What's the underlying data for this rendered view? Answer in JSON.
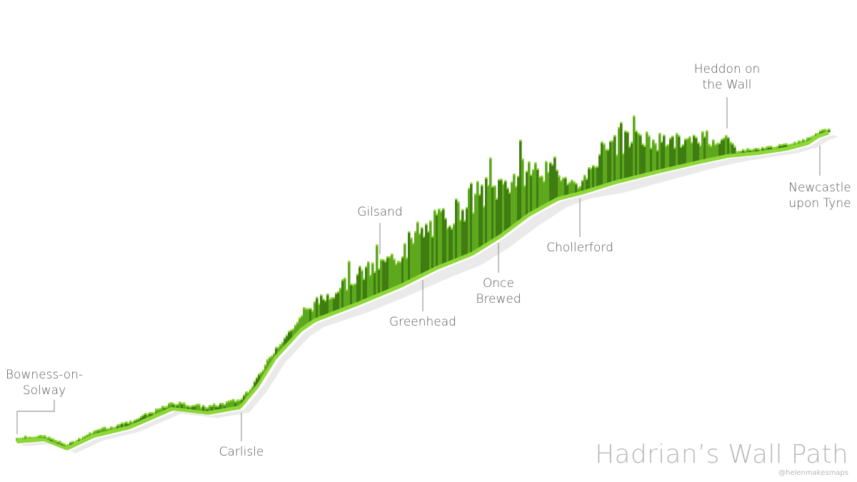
{
  "map": {
    "title": "Hadrian’s Wall Path",
    "credit": "@helenmakesmaps",
    "colors": {
      "background": "#ffffff",
      "path_top": "#8fd63a",
      "path_side": "#5ea81e",
      "path_dark": "#3f7d12",
      "shadow": "#d9d9d9",
      "label": "#555555",
      "leader": "#9a9a9a",
      "title": "#b8b8b8"
    },
    "places": [
      {
        "id": "bowness",
        "lines": [
          "Bowness-on-",
          "Solway"
        ]
      },
      {
        "id": "carlisle",
        "lines": [
          "Carlisle"
        ]
      },
      {
        "id": "greenhead",
        "lines": [
          "Greenhead"
        ]
      },
      {
        "id": "gilsand",
        "lines": [
          "Gilsand"
        ]
      },
      {
        "id": "once-brewed",
        "lines": [
          "Once",
          "Brewed"
        ]
      },
      {
        "id": "chollerford",
        "lines": [
          "Chollerford"
        ]
      },
      {
        "id": "heddon",
        "lines": [
          "Heddon on",
          "the Wall"
        ]
      },
      {
        "id": "newcastle",
        "lines": [
          "Newcastle",
          "upon Tyne"
        ]
      }
    ]
  }
}
